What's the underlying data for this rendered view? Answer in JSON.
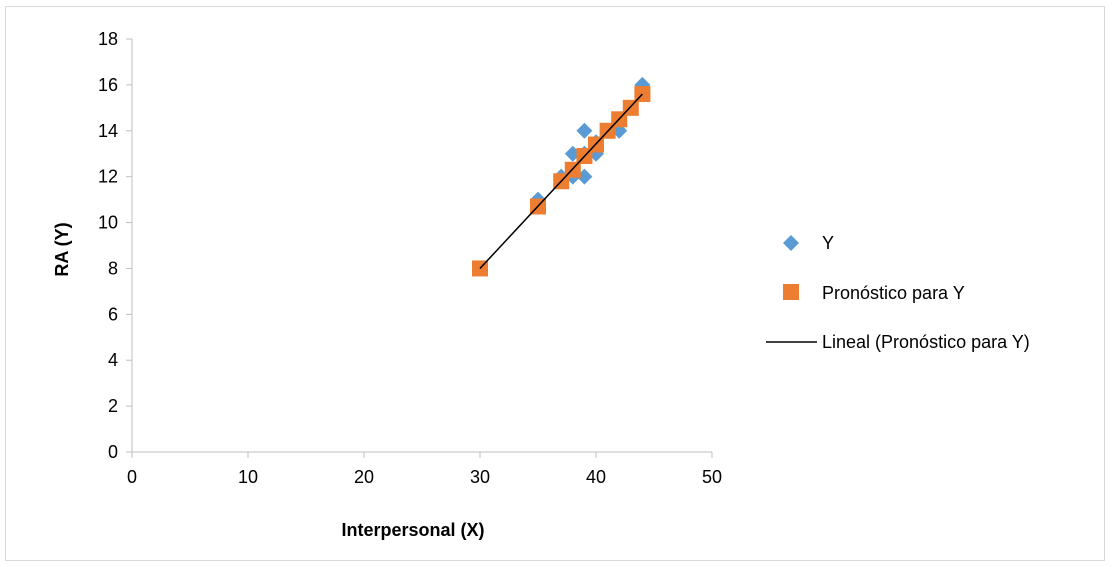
{
  "chart_data": {
    "type": "scatter",
    "title": "",
    "xlabel": "Interpersonal (X)",
    "ylabel": "RA (Y)",
    "xlim": [
      0,
      50
    ],
    "ylim": [
      0,
      18
    ],
    "xticks": [
      "0",
      "10",
      "20",
      "30",
      "40",
      "50"
    ],
    "yticks": [
      "0",
      "2",
      "4",
      "6",
      "8",
      "10",
      "12",
      "14",
      "16",
      "18"
    ],
    "grid": false,
    "legend_position": "right",
    "series": [
      {
        "name": "Y",
        "marker": "diamond",
        "color": "#5b9bd5",
        "x": [
          35,
          37,
          38,
          38,
          39,
          39,
          39,
          40,
          40,
          41,
          42,
          43,
          44
        ],
        "y": [
          11,
          12,
          12,
          13,
          12,
          13,
          14,
          13,
          13.5,
          14,
          14,
          15,
          16
        ]
      },
      {
        "name": "Pronóstico para Y",
        "marker": "square",
        "color": "#ed7d31",
        "x": [
          30,
          35,
          37,
          38,
          39,
          40,
          41,
          42,
          43,
          44
        ],
        "y": [
          8,
          10.7,
          11.8,
          12.3,
          12.9,
          13.4,
          14.0,
          14.5,
          15.0,
          15.6
        ]
      },
      {
        "name": "Lineal (Pronóstico para Y)",
        "type": "trendline",
        "color": "#000000",
        "x": [
          30,
          44
        ],
        "y": [
          8,
          15.6
        ]
      }
    ]
  }
}
